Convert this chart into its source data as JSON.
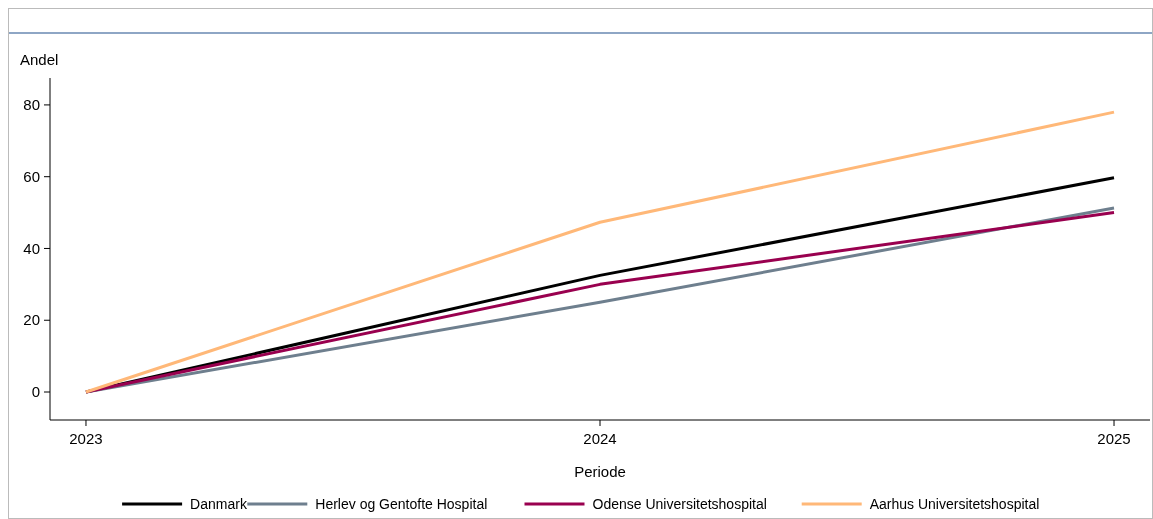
{
  "chart_data": {
    "type": "line",
    "xlabel": "Periode",
    "ylabel": "Andel",
    "x": [
      2023,
      2024,
      2025
    ],
    "xlim": [
      2022.93,
      2025.07
    ],
    "xticks": [
      2023,
      2024,
      2025
    ],
    "ylim": [
      -7.8,
      87.5
    ],
    "yticks": [
      0,
      20,
      40,
      60,
      80
    ],
    "grid": false,
    "legend": "bottom",
    "line_style": "solid",
    "marker": "none",
    "series": [
      {
        "name": "Danmark",
        "color": "#000000",
        "values": [
          0,
          32.5,
          59.7
        ]
      },
      {
        "name": "Herlev og Gentofte Hospital",
        "color": "#6e7f8e",
        "values": [
          0,
          25,
          51.3
        ]
      },
      {
        "name": "Odense Universitetshospital",
        "color": "#99004f",
        "values": [
          0,
          30,
          50
        ]
      },
      {
        "name": "Aarhus Universitetshospital",
        "color": "#ffb878",
        "values": [
          0,
          47.3,
          78
        ]
      }
    ]
  }
}
